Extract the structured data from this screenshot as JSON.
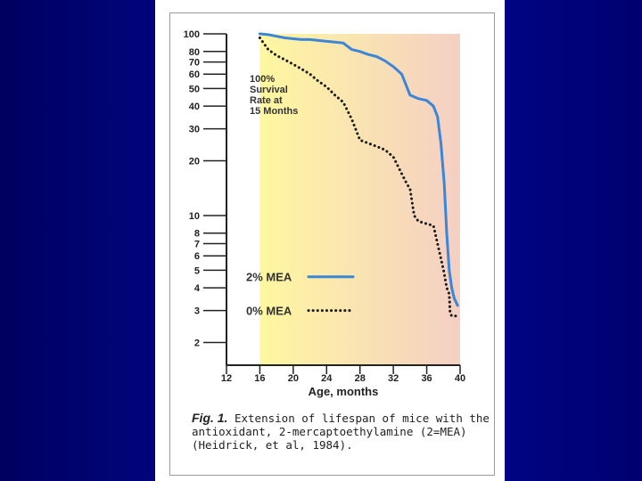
{
  "colors": {
    "background_dark": "#000060",
    "background_mid": "#000a9a",
    "plot_left": "#fff7a0",
    "plot_right": "#f4cfc4",
    "mea_2_line": "#3b86d8",
    "mea_0_line": "#1a1a1a"
  },
  "chart_data": {
    "type": "line",
    "title": "",
    "xlabel": "Age, months",
    "ylabel": "",
    "xlim": [
      12,
      40
    ],
    "ylim": [
      1.5,
      100
    ],
    "yscale": "log",
    "x_ticks": [
      12,
      16,
      20,
      24,
      28,
      32,
      36,
      40
    ],
    "x_tick_labels": [
      "12",
      "16",
      "20",
      "24",
      "28",
      "32",
      "36",
      "40"
    ],
    "y_ticks": [
      2,
      3,
      4,
      5,
      6,
      7,
      8,
      10,
      20,
      30,
      40,
      50,
      60,
      70,
      80,
      100
    ],
    "y_tick_labels": [
      "2",
      "3",
      "4",
      "5",
      "6",
      "7",
      "8",
      "10",
      "20",
      "30",
      "40",
      "50",
      "60",
      "70",
      "80",
      "100"
    ],
    "series": [
      {
        "name": "2% MEA",
        "style": "solid",
        "x": [
          16,
          17,
          18,
          19,
          20,
          21,
          22,
          23,
          24,
          25,
          26,
          27,
          28,
          29,
          30,
          31,
          32,
          33,
          34,
          35,
          36,
          36.8,
          37.3,
          37.7,
          38.1,
          38.4,
          38.7,
          39.0,
          39.3,
          39.7
        ],
        "y": [
          100,
          99,
          97,
          95,
          94,
          93,
          93,
          92,
          91,
          90,
          89,
          82,
          80,
          77,
          75,
          71,
          66,
          60,
          46,
          44,
          43,
          40,
          35,
          25,
          15,
          8.0,
          5.0,
          4.0,
          3.5,
          3.2
        ]
      },
      {
        "name": "0% MEA",
        "style": "dotted",
        "x": [
          16,
          17,
          18,
          19,
          20,
          21,
          22,
          23,
          24,
          25,
          26,
          27,
          28,
          29,
          30,
          31,
          32,
          33,
          33.6,
          34,
          34.5,
          35,
          36,
          36.8,
          37.3,
          37.7,
          38.1,
          38.4,
          38.7,
          38.8,
          39.0,
          39.5
        ],
        "y": [
          95,
          82,
          76,
          72,
          68,
          64,
          60,
          55,
          51,
          46,
          42,
          34,
          26,
          25,
          24,
          23,
          21,
          17,
          15,
          14,
          10,
          9.3,
          9.0,
          8.8,
          7.0,
          5.8,
          4.8,
          4.0,
          3.7,
          2.9,
          2.8,
          2.8
        ]
      }
    ],
    "legend": [
      "2% MEA",
      "0% MEA"
    ],
    "legend_position": "bottom-left inside plot",
    "annotation": "100%\nSurvival\nRate at\n15 Months"
  },
  "caption": {
    "label": "Fig. 1.",
    "text": "Extension of lifespan of mice with the antioxidant, 2-mercaptoethylamine (2=MEA) (Heidrick, et al, 1984)."
  }
}
